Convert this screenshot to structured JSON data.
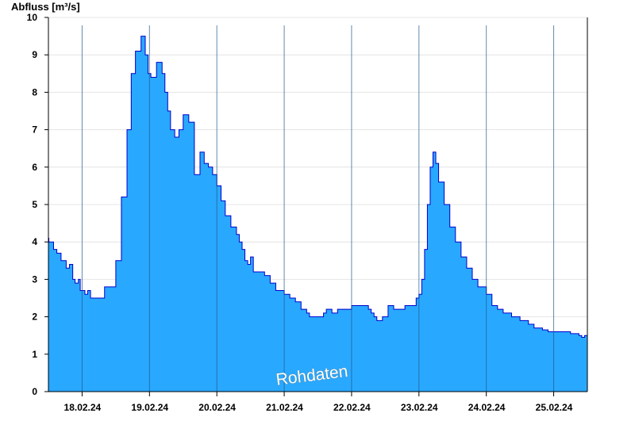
{
  "chart_data": {
    "type": "area",
    "ylabel": "Abfluss [m³/s]",
    "ylim": [
      0,
      10
    ],
    "yticks": [
      0,
      1,
      2,
      3,
      4,
      5,
      6,
      7,
      8,
      9,
      10
    ],
    "xlim": [
      "2024-02-17T12:00",
      "2024-02-25T12:00"
    ],
    "x_tick_labels": [
      "18.02.24",
      "19.02.24",
      "20.02.24",
      "21.02.24",
      "22.02.24",
      "23.02.24",
      "24.02.24",
      "25.02.24"
    ],
    "day_boundaries": [
      "2024-02-18",
      "2024-02-19",
      "2024-02-20",
      "2024-02-21",
      "2024-02-22",
      "2024-02-23",
      "2024-02-24",
      "2024-02-25"
    ],
    "grid": true,
    "watermark": "Rohdaten",
    "fill_color": "#29a8ff",
    "line_color": "#0000cc",
    "series": [
      {
        "x": [
          "2024-02-17T12:00",
          "2024-02-17T12:10",
          "2024-02-17T13:50",
          "2024-02-17T15:00",
          "2024-02-17T16:30",
          "2024-02-17T18:20",
          "2024-02-17T19:30",
          "2024-02-17T20:40",
          "2024-02-17T21:30",
          "2024-02-17T22:40",
          "2024-02-17T23:20",
          "2024-02-18T00:00",
          "2024-02-18T01:00",
          "2024-02-18T02:00",
          "2024-02-18T03:00",
          "2024-02-18T04:30",
          "2024-02-18T06:00",
          "2024-02-18T08:00",
          "2024-02-18T12:00",
          "2024-02-18T14:00",
          "2024-02-18T16:00",
          "2024-02-18T17:30",
          "2024-02-18T19:00",
          "2024-02-18T21:00",
          "2024-02-18T22:30",
          "2024-02-18T23:30",
          "2024-02-19T00:30",
          "2024-02-19T01:30",
          "2024-02-19T02:30",
          "2024-02-19T03:30",
          "2024-02-19T04:30",
          "2024-02-19T05:30",
          "2024-02-19T06:30",
          "2024-02-19T07:30",
          "2024-02-19T09:00",
          "2024-02-19T10:30",
          "2024-02-19T12:00",
          "2024-02-19T14:00",
          "2024-02-19T16:00",
          "2024-02-19T18:00",
          "2024-02-19T19:30",
          "2024-02-19T21:00",
          "2024-02-19T22:30",
          "2024-02-20T00:00",
          "2024-02-20T01:30",
          "2024-02-20T03:00",
          "2024-02-20T05:00",
          "2024-02-20T07:00",
          "2024-02-20T08:00",
          "2024-02-20T09:00",
          "2024-02-20T10:00",
          "2024-02-20T11:00",
          "2024-02-20T12:00",
          "2024-02-20T13:00",
          "2024-02-20T15:00",
          "2024-02-20T17:00",
          "2024-02-20T19:00",
          "2024-02-20T21:00",
          "2024-02-21T00:00",
          "2024-02-21T02:00",
          "2024-02-21T04:00",
          "2024-02-21T06:00",
          "2024-02-21T07:00",
          "2024-02-21T08:00",
          "2024-02-21T09:00",
          "2024-02-21T10:00",
          "2024-02-21T12:00",
          "2024-02-21T14:00",
          "2024-02-21T15:00",
          "2024-02-21T17:00",
          "2024-02-21T19:00",
          "2024-02-21T21:00",
          "2024-02-22T00:00",
          "2024-02-22T03:00",
          "2024-02-22T06:00",
          "2024-02-22T07:00",
          "2024-02-22T08:00",
          "2024-02-22T09:00",
          "2024-02-22T11:00",
          "2024-02-22T13:00",
          "2024-02-22T15:00",
          "2024-02-22T17:00",
          "2024-02-22T19:00",
          "2024-02-22T21:00",
          "2024-02-22T23:00",
          "2024-02-23T00:00",
          "2024-02-23T01:00",
          "2024-02-23T02:00",
          "2024-02-23T03:00",
          "2024-02-23T04:00",
          "2024-02-23T05:00",
          "2024-02-23T06:00",
          "2024-02-23T07:00",
          "2024-02-23T09:00",
          "2024-02-23T11:00",
          "2024-02-23T13:00",
          "2024-02-23T15:00",
          "2024-02-23T17:00",
          "2024-02-23T19:00",
          "2024-02-23T21:00",
          "2024-02-24T00:00",
          "2024-02-24T02:00",
          "2024-02-24T04:00",
          "2024-02-24T06:00",
          "2024-02-24T09:00",
          "2024-02-24T12:00",
          "2024-02-24T15:00",
          "2024-02-24T17:00",
          "2024-02-24T20:00",
          "2024-02-24T22:00",
          "2024-02-25T00:00",
          "2024-02-25T03:00",
          "2024-02-25T06:00",
          "2024-02-25T09:00",
          "2024-02-25T10:00",
          "2024-02-25T11:00",
          "2024-02-25T12:00"
        ],
        "y": [
          4.1,
          4.0,
          3.8,
          3.7,
          3.5,
          3.3,
          3.4,
          3.0,
          2.9,
          3.0,
          2.7,
          2.7,
          2.6,
          2.7,
          2.5,
          2.5,
          2.5,
          2.8,
          3.5,
          5.2,
          7.0,
          8.5,
          9.1,
          9.5,
          9.0,
          8.5,
          8.4,
          8.4,
          8.8,
          8.8,
          8.5,
          8.0,
          7.5,
          7.0,
          6.8,
          7.0,
          7.4,
          7.2,
          5.8,
          6.4,
          6.1,
          6.0,
          5.8,
          5.5,
          5.1,
          4.7,
          4.4,
          4.2,
          4.0,
          3.8,
          3.5,
          3.4,
          3.6,
          3.2,
          3.2,
          3.1,
          2.9,
          2.7,
          2.6,
          2.5,
          2.4,
          2.2,
          2.2,
          2.1,
          2.0,
          2.0,
          2.0,
          2.1,
          2.2,
          2.1,
          2.2,
          2.2,
          2.3,
          2.3,
          2.2,
          2.1,
          2.0,
          1.9,
          2.0,
          2.3,
          2.2,
          2.2,
          2.3,
          2.3,
          2.5,
          2.6,
          3.0,
          3.8,
          5.0,
          6.0,
          6.4,
          6.1,
          5.6,
          5.0,
          4.4,
          4.0,
          3.6,
          3.3,
          3.0,
          2.8,
          2.6,
          2.3,
          2.2,
          2.1,
          2.0,
          1.9,
          1.8,
          1.7,
          1.65,
          1.6,
          1.6,
          1.6,
          1.55,
          1.5,
          1.45,
          1.5,
          1.5
        ]
      }
    ]
  }
}
